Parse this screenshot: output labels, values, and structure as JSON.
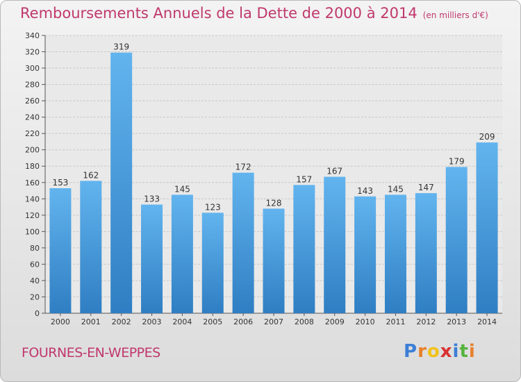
{
  "title": "Remboursements Annuels de la Dette de 2000 à 2014",
  "unit": "(en milliers d'€)",
  "city": "FOURNES-EN-WEPPES",
  "logo": {
    "letters": [
      "P",
      "r",
      "o",
      "x",
      "i",
      "t",
      "i"
    ],
    "colors": [
      "#3d7fd6",
      "#e8802a",
      "#f2c21b",
      "#d93030",
      "#3d7fd6",
      "#57b33e",
      "#e8802a"
    ]
  },
  "colors": {
    "bar_top": "#62b4ee",
    "bar_bottom": "#2f7ec3",
    "title": "#c0386c"
  },
  "chart_data": {
    "type": "bar",
    "categories": [
      "2000",
      "2001",
      "2002",
      "2003",
      "2004",
      "2005",
      "2006",
      "2007",
      "2008",
      "2009",
      "2010",
      "2011",
      "2012",
      "2013",
      "2014"
    ],
    "values": [
      153,
      162,
      319,
      133,
      145,
      123,
      172,
      128,
      157,
      167,
      143,
      145,
      147,
      179,
      209
    ],
    "ylim": [
      0,
      340
    ],
    "ytick_step": 20,
    "grid": true
  }
}
